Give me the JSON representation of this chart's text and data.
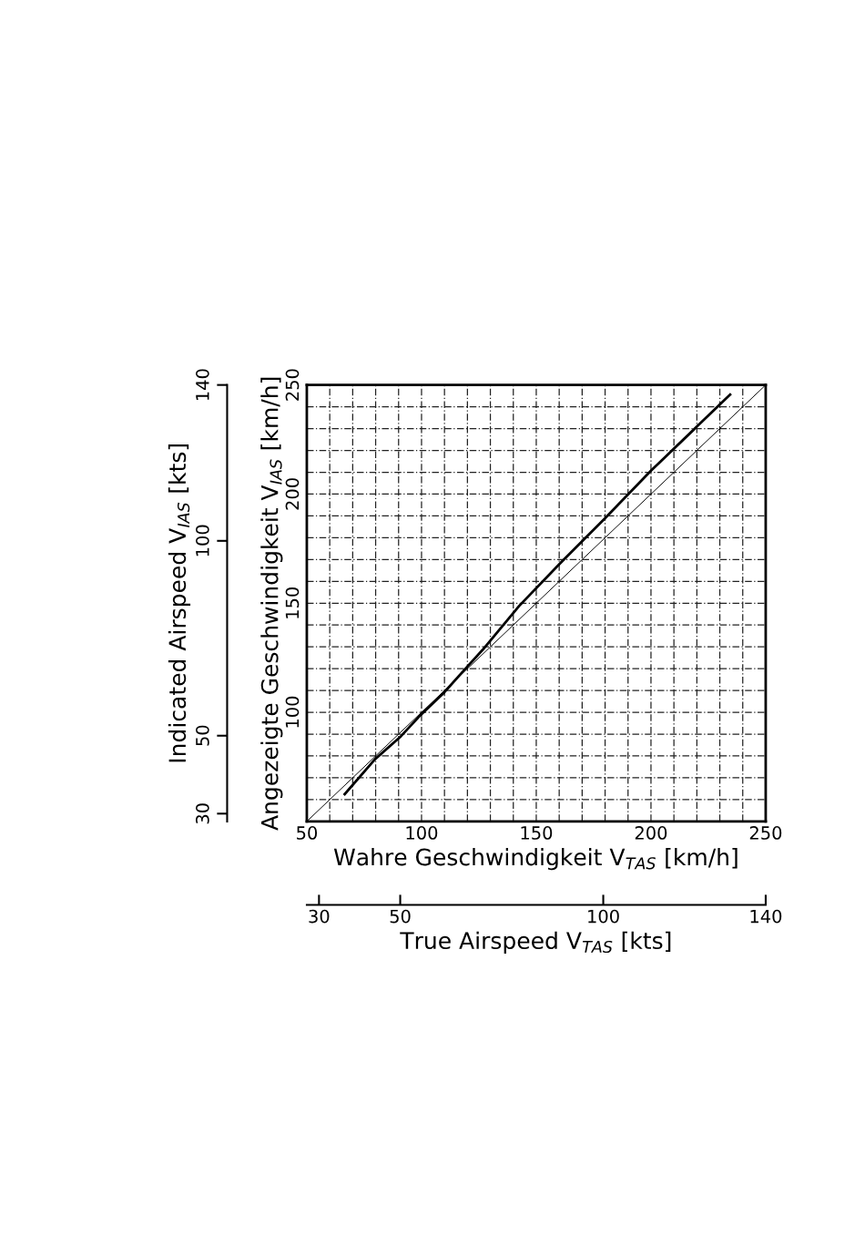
{
  "chart_data": {
    "type": "line",
    "xlabel": "Wahre Geschwindigkeit V$_{TAS}$ [km/h]",
    "ylabel": "Angezeigte Geschwindigkeit V$_{IAS}$ [km/h]",
    "x2label": "True Airspeed V$_{TAS}$ [kts]",
    "y2label": "Indicated Airspeed V$_{IAS}$ [kts]",
    "xlim": [
      50,
      250
    ],
    "ylim": [
      50,
      250
    ],
    "xticks": [
      50,
      {
        "value": 60,
        "label": null
      },
      {
        "value": 70,
        "label": null
      },
      {
        "value": 80,
        "label": null
      },
      {
        "value": 90,
        "label": null
      },
      100,
      {
        "value": 110,
        "label": null
      },
      {
        "value": 120,
        "label": null
      },
      {
        "value": 130,
        "label": null
      },
      {
        "value": 140,
        "label": null
      },
      150,
      {
        "value": 160,
        "label": null
      },
      {
        "value": 170,
        "label": null
      },
      {
        "value": 180,
        "label": null
      },
      {
        "value": 190,
        "label": null
      },
      200,
      {
        "value": 210,
        "label": null
      },
      {
        "value": 220,
        "label": null
      },
      {
        "value": 230,
        "label": null
      },
      {
        "value": 240,
        "label": null
      },
      250
    ],
    "yticks": [
      {
        "value": 50,
        "label": null
      },
      {
        "value": 60,
        "label": null
      },
      {
        "value": 70,
        "label": null
      },
      {
        "value": 80,
        "label": null
      },
      {
        "value": 90,
        "label": null
      },
      100,
      {
        "value": 110,
        "label": null
      },
      {
        "value": 120,
        "label": null
      },
      {
        "value": 130,
        "label": null
      },
      {
        "value": 140,
        "label": null
      },
      150,
      {
        "value": 160,
        "label": null
      },
      {
        "value": 170,
        "label": null
      },
      {
        "value": 180,
        "label": null
      },
      {
        "value": 190,
        "label": null
      },
      200,
      {
        "value": 210,
        "label": null
      },
      {
        "value": 220,
        "label": null
      },
      {
        "value": 230,
        "label": null
      },
      {
        "value": 240,
        "label": null
      },
      250
    ],
    "x2lim": [
      27,
      140
    ],
    "x2ticks": [
      30,
      50,
      100,
      140
    ],
    "y2lim": [
      28,
      140
    ],
    "y2ticks": [
      30,
      50,
      100,
      140
    ],
    "grid": true,
    "series": [
      {
        "color": "#000000",
        "x": [
          50,
          250
        ],
        "values": [
          50,
          250
        ]
      },
      {
        "color": "#000000",
        "x": [
          66.5,
          79.8,
          91,
          98.9,
          109.5,
          118.8,
          126.7,
          142.6,
          160.4,
          179.6,
          200.1,
          219.3,
          234.5
        ],
        "values": [
          62.5,
          78.6,
          89,
          98,
          108.7,
          119.6,
          128.7,
          148.8,
          168.3,
          188.5,
          210.8,
          230.2,
          245.6
        ]
      }
    ]
  }
}
